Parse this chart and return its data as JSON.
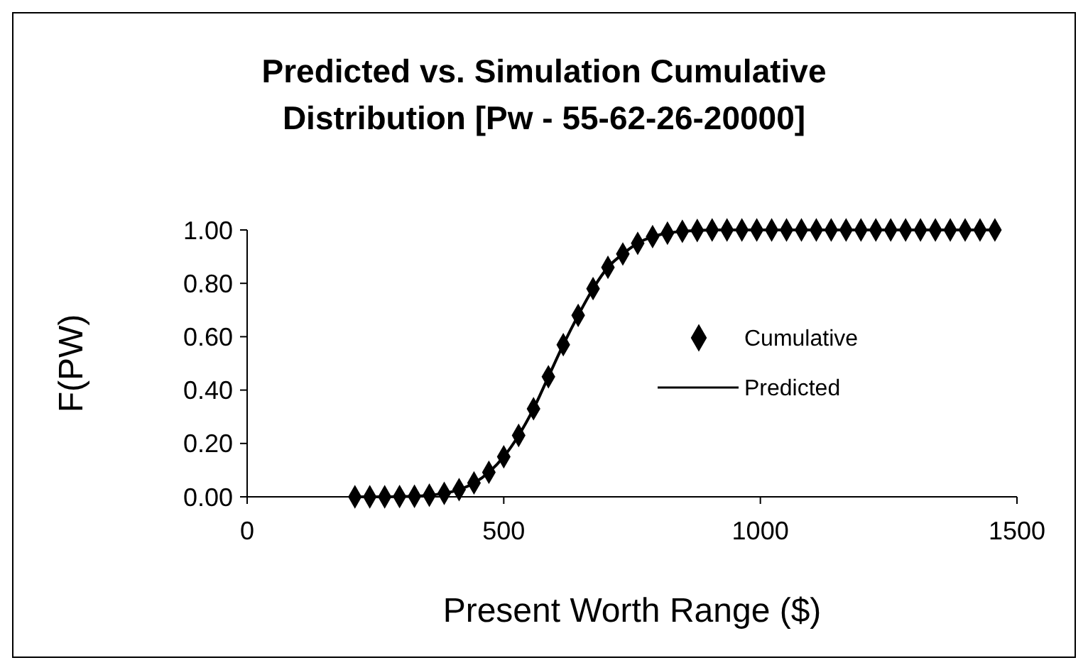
{
  "chart_data": {
    "type": "scatter",
    "title": "Predicted vs. Simulation Cumulative Distribution [Pw - 55-62-26-20000]",
    "xlabel": "Present Worth Range ($)",
    "ylabel": "F(PW)",
    "x": [
      210,
      239,
      268,
      297,
      326,
      355,
      384,
      413,
      442,
      471,
      500,
      529,
      558,
      587,
      616,
      645,
      674,
      703,
      732,
      761,
      790,
      819,
      848,
      877,
      906,
      935,
      964,
      993,
      1022,
      1051,
      1080,
      1109,
      1138,
      1167,
      1196,
      1225,
      1254,
      1283,
      1312,
      1341,
      1370,
      1399,
      1428,
      1457
    ],
    "series": [
      {
        "name": "Cumulative",
        "marker": "diamond",
        "color": "#000000",
        "values": [
          0,
          0,
          0,
          0.001,
          0.002,
          0.006,
          0.013,
          0.027,
          0.052,
          0.092,
          0.15,
          0.23,
          0.33,
          0.45,
          0.57,
          0.68,
          0.78,
          0.86,
          0.91,
          0.95,
          0.975,
          0.988,
          0.995,
          0.998,
          1,
          1,
          1,
          1,
          1,
          1,
          1,
          1,
          1,
          1,
          1,
          1,
          1,
          1,
          1,
          1,
          1,
          1,
          1,
          1
        ]
      },
      {
        "name": "Predicted",
        "type": "line",
        "marker": "none",
        "line_style": "solid",
        "color": "#000000",
        "values": [
          0,
          0,
          0,
          0.001,
          0.002,
          0.006,
          0.013,
          0.027,
          0.052,
          0.092,
          0.15,
          0.23,
          0.33,
          0.45,
          0.57,
          0.68,
          0.78,
          0.86,
          0.91,
          0.95,
          0.975,
          0.988,
          0.995,
          0.998,
          1,
          1,
          1,
          1,
          1,
          1,
          1,
          1,
          1,
          1,
          1,
          1,
          1,
          1,
          1,
          1,
          1,
          1,
          1,
          1
        ]
      }
    ],
    "xlim": [
      0,
      1500
    ],
    "xticks": [
      0,
      500,
      1000,
      1500
    ],
    "ylim": [
      0,
      1
    ],
    "yticks": [
      {
        "value": 0,
        "label": "0.00"
      },
      {
        "value": 0.2,
        "label": "0.20"
      },
      {
        "value": 0.4,
        "label": "0.40"
      },
      {
        "value": 0.6,
        "label": "0.60"
      },
      {
        "value": 0.8,
        "label": "0.80"
      },
      {
        "value": 1,
        "label": "1.00"
      }
    ],
    "grid": false,
    "legend": "right"
  }
}
